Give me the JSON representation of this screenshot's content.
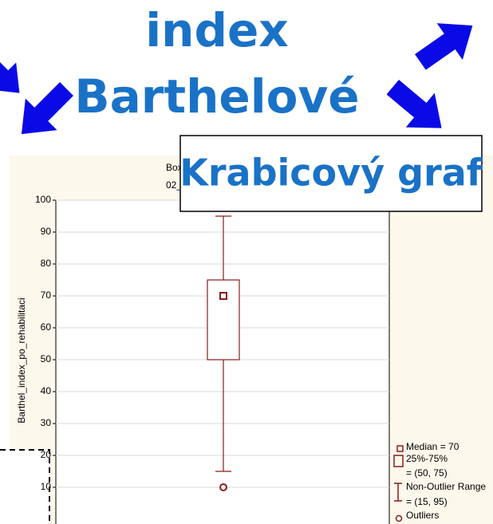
{
  "overlay_title": [
    "index",
    "Barthelové"
  ],
  "callout": "Krabicový graf",
  "chart_data": {
    "type": "box",
    "title_lines": [
      "Box",
      "02_"
    ],
    "ylabel": "Barthel_index_po_rehabilitaci",
    "ylim": [
      0,
      100
    ],
    "yticks": [
      10,
      20,
      30,
      40,
      50,
      60,
      70,
      80,
      90,
      100
    ],
    "grid": true,
    "series": [
      {
        "color": "#8b1a1a",
        "median": 70,
        "q1": 50,
        "q3": 75,
        "whisker_low": 15,
        "whisker_high": 95,
        "outliers": [
          10
        ]
      }
    ],
    "legend": [
      "Median = 70",
      "25%-75%",
      "= (50, 75)",
      "Non-Outlier Range",
      "= (15, 95)",
      "Outliers"
    ]
  }
}
